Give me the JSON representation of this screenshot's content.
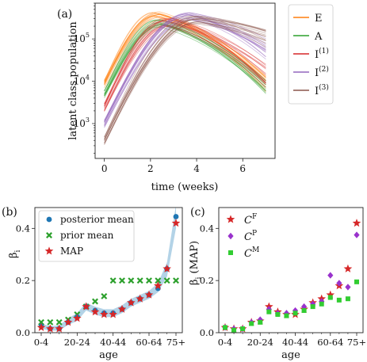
{
  "panels": {
    "a": {
      "label": "(a)"
    },
    "b": {
      "label": "(b)"
    },
    "c": {
      "label": "(c)"
    }
  },
  "colors": {
    "E": "#ff7f0e",
    "A": "#2ca02c",
    "I1": "#d62728",
    "I2": "#9467bd",
    "I3": "#8c564b",
    "posterior": "#1f77b4",
    "band": "#a6cbe3",
    "prior": "#2ca02c",
    "map": "#d62728",
    "CF": "#d62728",
    "CP": "#9932cc",
    "CM": "#32cd32"
  },
  "chart_data": [
    {
      "type": "line",
      "panel": "(a)",
      "xlabel": "time (weeks)",
      "ylabel": "latent class population",
      "yscale": "log",
      "xlim": [
        -0.4,
        7.4
      ],
      "ylim": [
        150,
        700000
      ],
      "xticks": [
        0,
        2,
        4,
        6
      ],
      "yticks": [
        1000,
        10000,
        100000
      ],
      "ytick_labels": [
        {
          "base": "10",
          "exp": "3"
        },
        {
          "base": "10",
          "exp": "4"
        },
        {
          "base": "10",
          "exp": "5"
        }
      ],
      "legend": {
        "placement": "outside-right",
        "entries": [
          {
            "label": "E",
            "sup": ""
          },
          {
            "label": "A",
            "sup": ""
          },
          {
            "label": "I",
            "sup": "(1)"
          },
          {
            "label": "I",
            "sup": "(2)"
          },
          {
            "label": "I",
            "sup": "(3)"
          }
        ]
      },
      "series": [
        {
          "key": "E",
          "values_t0": 9000,
          "peak_time": 2.3,
          "peak": 370000,
          "tail_t7": 9000
        },
        {
          "key": "A",
          "values_t0": 5000,
          "peak_time": 2.5,
          "peak": 240000,
          "tail_t7": 7000
        },
        {
          "key": "I1",
          "values_t0": 2500,
          "peak_time": 2.8,
          "peak": 260000,
          "tail_t7": 15000
        },
        {
          "key": "I2",
          "values_t0": 1000,
          "peak_time": 3.6,
          "peak": 350000,
          "tail_t7": 60000
        },
        {
          "key": "I3",
          "values_t0": 400,
          "peak_time": 4.0,
          "peak": 290000,
          "tail_t7": 110000
        }
      ]
    },
    {
      "type": "scatter",
      "panel": "(b)",
      "xlabel": "age",
      "ylabel": "β",
      "ylabel_sub": "i",
      "ylim": [
        0,
        0.48
      ],
      "yticks": [
        0.0,
        0.2,
        0.4
      ],
      "ytick_labels": [
        "0.0",
        "0.2",
        "0.4"
      ],
      "categories_count": 16,
      "xtick_labels": [
        "0-4",
        "20-24",
        "40-44",
        "60-64",
        "75+"
      ],
      "xtick_index": [
        0,
        4,
        8,
        12,
        15
      ],
      "legend": {
        "placement": "top-left",
        "entries": [
          "posterior mean",
          "prior mean",
          "MAP"
        ]
      },
      "band_low": [
        0.015,
        0.008,
        0.008,
        0.03,
        0.045,
        0.085,
        0.07,
        0.06,
        0.06,
        0.075,
        0.1,
        0.115,
        0.13,
        0.155,
        0.215,
        0.4
      ],
      "band_high": [
        0.035,
        0.025,
        0.028,
        0.055,
        0.075,
        0.115,
        0.1,
        0.09,
        0.09,
        0.105,
        0.13,
        0.145,
        0.16,
        0.19,
        0.27,
        0.49
      ],
      "series": [
        {
          "name": "posterior mean",
          "marker": "circle",
          "values": [
            0.025,
            0.015,
            0.015,
            0.04,
            0.06,
            0.1,
            0.085,
            0.075,
            0.075,
            0.09,
            0.115,
            0.13,
            0.145,
            0.17,
            0.245,
            0.445
          ]
        },
        {
          "name": "prior mean",
          "marker": "x",
          "values": [
            0.04,
            0.04,
            0.04,
            0.05,
            0.07,
            0.1,
            0.12,
            0.14,
            0.2,
            0.2,
            0.2,
            0.2,
            0.2,
            0.2,
            0.2,
            0.2
          ]
        },
        {
          "name": "MAP",
          "marker": "star",
          "values": [
            0.02,
            0.015,
            0.015,
            0.04,
            0.055,
            0.1,
            0.08,
            0.07,
            0.07,
            0.09,
            0.115,
            0.13,
            0.145,
            0.18,
            0.245,
            0.42
          ]
        }
      ]
    },
    {
      "type": "scatter",
      "panel": "(c)",
      "xlabel": "age",
      "ylabel": "β",
      "ylabel_sub": "i",
      "ylabel_suffix": " (MAP)",
      "ylim": [
        0,
        0.48
      ],
      "yticks": [
        0.0,
        0.2,
        0.4
      ],
      "ytick_labels": [
        "0.0",
        "0.2",
        "0.4"
      ],
      "categories_count": 16,
      "xtick_labels": [
        "0-4",
        "20-24",
        "40-44",
        "60-64",
        "75+"
      ],
      "xtick_index": [
        0,
        4,
        8,
        12,
        15
      ],
      "legend": {
        "placement": "top-left",
        "entries": [
          {
            "label": "C",
            "sup": "F"
          },
          {
            "label": "C",
            "sup": "P"
          },
          {
            "label": "C",
            "sup": "M"
          }
        ]
      },
      "series": [
        {
          "key": "CF",
          "marker": "star",
          "values": [
            0.02,
            0.015,
            0.015,
            0.04,
            0.045,
            0.1,
            0.08,
            0.07,
            0.07,
            0.09,
            0.115,
            0.13,
            0.145,
            0.18,
            0.245,
            0.42
          ]
        },
        {
          "key": "CP",
          "marker": "diamond",
          "values": [
            0.02,
            0.015,
            0.015,
            0.04,
            0.05,
            0.09,
            0.075,
            0.075,
            0.085,
            0.1,
            0.11,
            0.12,
            0.22,
            0.19,
            0.175,
            0.375
          ]
        },
        {
          "key": "CM",
          "marker": "square",
          "values": [
            0.02,
            0.01,
            0.015,
            0.035,
            0.04,
            0.08,
            0.07,
            0.065,
            0.075,
            0.085,
            0.1,
            0.11,
            0.135,
            0.125,
            0.13,
            0.195
          ]
        }
      ]
    }
  ]
}
